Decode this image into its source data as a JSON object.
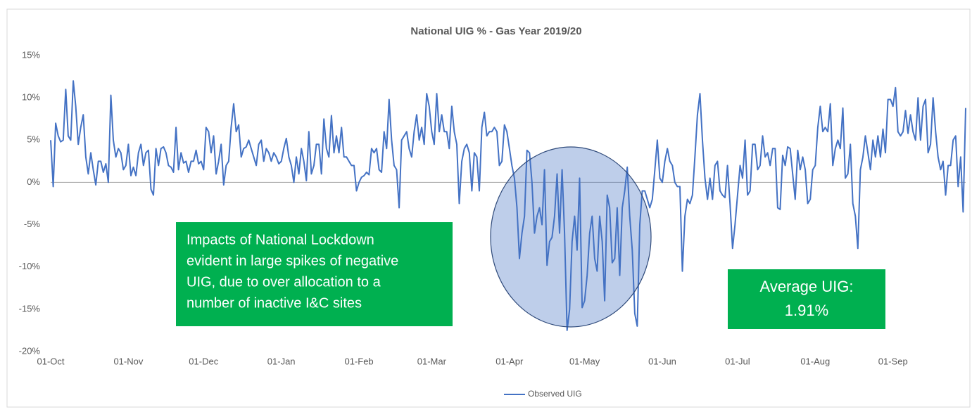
{
  "chart_data": {
    "type": "line",
    "title": "National UIG % - Gas Year 2019/20",
    "series": [
      {
        "name": "Observed UIG",
        "color": "#4472c4",
        "values": [
          5,
          -0.5,
          7,
          5.5,
          4.8,
          5,
          11,
          5.5,
          5,
          12,
          9,
          4.5,
          6.5,
          8,
          3,
          1,
          3.5,
          1.5,
          -0.3,
          2.5,
          2.5,
          1.2,
          2.2,
          0,
          10.3,
          5,
          3,
          4,
          3.5,
          1.5,
          2,
          4.5,
          0.8,
          1.8,
          0.8,
          3.5,
          4.5,
          2,
          3.5,
          3.8,
          -0.8,
          -1.5,
          4,
          2,
          4,
          4.2,
          3.5,
          2,
          1.8,
          1.2,
          6.5,
          1.5,
          3.5,
          2.3,
          2.5,
          1.2,
          2.5,
          2.5,
          3.8,
          2.2,
          2.5,
          1.5,
          6.5,
          6,
          3.5,
          5.5,
          1,
          2.5,
          4.5,
          -0.3,
          2,
          2.5,
          6.5,
          9.3,
          6,
          6.8,
          3,
          4,
          4.2,
          5,
          4,
          3,
          2,
          4.5,
          5,
          2.5,
          4,
          3.5,
          2.5,
          3.5,
          3,
          2.2,
          2.5,
          4,
          5.2,
          3,
          2,
          0,
          3,
          1,
          4,
          2.5,
          0.2,
          6,
          1,
          2,
          4.5,
          4.5,
          1,
          7.5,
          4,
          3,
          7.9,
          3.5,
          5.5,
          3.5,
          6.5,
          3,
          3,
          2.5,
          2,
          2,
          -1,
          0,
          0.6,
          0.8,
          1.2,
          0.9,
          4,
          3.5,
          4,
          1.5,
          1.2,
          6,
          4,
          9.8,
          5,
          2,
          1.5,
          -3,
          5,
          5.5,
          6,
          4,
          3,
          6,
          8,
          5,
          6.5,
          4.5,
          10.5,
          9,
          6,
          4.5,
          10.5,
          6,
          8,
          6,
          6,
          4,
          9,
          6,
          4.5,
          -2.5,
          2.5,
          4,
          4.5,
          3.5,
          -1,
          3.5,
          3,
          -1,
          6.5,
          8.3,
          5.5,
          6,
          6,
          6.5,
          6,
          2,
          2.5,
          6.8,
          6,
          4,
          2,
          0.5,
          -3,
          -9,
          -6,
          -4,
          3.8,
          3.5,
          0,
          -6,
          -4,
          -3,
          -5,
          1.5,
          -9.8,
          -7,
          -6.5,
          -4,
          1,
          -6,
          1.5,
          -6,
          -17.5,
          -15,
          -7,
          -4,
          -8,
          0.5,
          -14.8,
          -14,
          -11,
          -6,
          -4,
          -9,
          -10.5,
          -4,
          -7,
          -14,
          -1.5,
          -3,
          -9.5,
          -9,
          -3,
          -11,
          -3,
          -1,
          1.8,
          -4,
          -8,
          -15.5,
          -17,
          -5,
          -1,
          -1,
          -2,
          -3,
          -2,
          1.5,
          5,
          0.5,
          0,
          2.5,
          4,
          2.5,
          2,
          0,
          -0.5,
          -0.5,
          -10.5,
          -4,
          -2,
          -2.5,
          -1.5,
          3,
          8,
          10.5,
          5,
          0.5,
          -2,
          0.5,
          -2,
          2,
          2.5,
          -1,
          -1.5,
          -1.8,
          2,
          -2.5,
          -7.8,
          -5,
          -1.5,
          2,
          0.5,
          5,
          -1.5,
          -1,
          4.5,
          4.5,
          1.5,
          2,
          5.5,
          3,
          3.5,
          2,
          4,
          4,
          -3,
          -3.2,
          3.2,
          2,
          4.2,
          4,
          1,
          -2,
          3.8,
          1.5,
          3,
          1.5,
          -2.5,
          -2,
          1.5,
          2,
          6.5,
          9,
          6,
          6.5,
          6,
          9.3,
          2,
          4,
          5,
          4,
          8.8,
          0.5,
          1,
          4.5,
          -2.5,
          -4,
          -7.8,
          1.5,
          3,
          5.5,
          3.5,
          1.5,
          5,
          3,
          5.5,
          3,
          6.3,
          3.5,
          9.8,
          9.8,
          9,
          11.2,
          6,
          5.5,
          6,
          8.5,
          5.8,
          8,
          6,
          5,
          10,
          5,
          9,
          9.8,
          3.5,
          4.5,
          10,
          6,
          3,
          1.5,
          2.5,
          -1.5,
          2,
          2,
          5,
          5.5,
          -0.5,
          3,
          -3.5,
          8.8
        ]
      }
    ],
    "xlim": [
      0,
      365
    ],
    "xticks": [
      {
        "value": 0,
        "label": "01-Oct"
      },
      {
        "value": 31,
        "label": "01-Nov"
      },
      {
        "value": 61,
        "label": "01-Dec"
      },
      {
        "value": 92,
        "label": "01-Jan"
      },
      {
        "value": 123,
        "label": "01-Feb"
      },
      {
        "value": 152,
        "label": "01-Mar"
      },
      {
        "value": 183,
        "label": "01-Apr"
      },
      {
        "value": 213,
        "label": "01-May"
      },
      {
        "value": 244,
        "label": "01-Jun"
      },
      {
        "value": 274,
        "label": "01-Jul"
      },
      {
        "value": 305,
        "label": "01-Aug"
      },
      {
        "value": 336,
        "label": "01-Sep"
      }
    ],
    "ylim": [
      -20,
      15
    ],
    "yticks": [
      {
        "value": -20,
        "label": "-20%"
      },
      {
        "value": -15,
        "label": "-15%"
      },
      {
        "value": -10,
        "label": "-10%"
      },
      {
        "value": -5,
        "label": "-5%"
      },
      {
        "value": 0,
        "label": "0%"
      },
      {
        "value": 5,
        "label": "5%"
      },
      {
        "value": 10,
        "label": "10%"
      },
      {
        "value": 15,
        "label": "15%"
      }
    ],
    "annotations": [
      [
        "Impacts of National Lockdown",
        "evident in large spikes of negative",
        "UIG, due to over allocation to a",
        "number of inactive I&C sites"
      ],
      [
        "Average UIG:",
        "1.91%"
      ]
    ]
  }
}
